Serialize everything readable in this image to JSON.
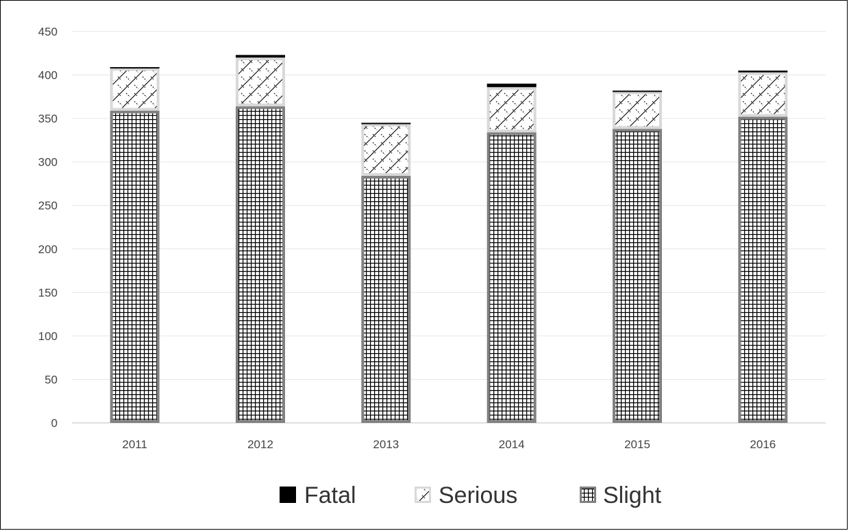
{
  "chart_data": {
    "type": "bar",
    "stacked": true,
    "title": "",
    "xlabel": "",
    "ylabel": "",
    "categories": [
      "2011",
      "2012",
      "2013",
      "2014",
      "2015",
      "2016"
    ],
    "series": [
      {
        "name": "Slight",
        "values": [
          359,
          364,
          284,
          334,
          338,
          352
        ],
        "color": "#808080",
        "pattern": "grid"
      },
      {
        "name": "Serious",
        "values": [
          49,
          56,
          60,
          52,
          43,
          51
        ],
        "color": "#d9d9d9",
        "pattern": "diagonal"
      },
      {
        "name": "Fatal",
        "values": [
          1,
          3,
          1,
          4,
          1,
          2
        ],
        "color": "#000000",
        "pattern": "solid"
      }
    ],
    "ylim": [
      0,
      450
    ],
    "yticks": [
      "0",
      "50",
      "100",
      "150",
      "200",
      "250",
      "300",
      "350",
      "400",
      "450"
    ],
    "grid": true,
    "legend_position": "bottom",
    "legend_order": [
      "Fatal",
      "Serious",
      "Slight"
    ]
  }
}
